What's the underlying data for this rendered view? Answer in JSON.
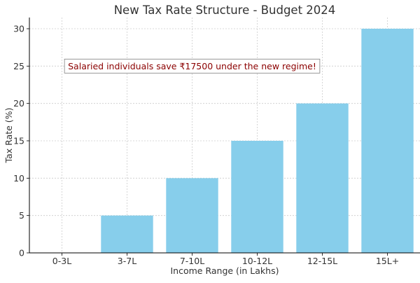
{
  "chart_data": {
    "type": "bar",
    "title": "New Tax Rate Structure - Budget 2024",
    "xlabel": "Income Range (in Lakhs)",
    "ylabel": "Tax Rate (%)",
    "categories": [
      "0-3L",
      "3-7L",
      "7-10L",
      "10-12L",
      "12-15L",
      "15L+"
    ],
    "values": [
      0,
      5,
      10,
      15,
      20,
      30
    ],
    "ylim": [
      0,
      31.5
    ],
    "yticks": [
      0,
      5,
      10,
      15,
      20,
      25,
      30
    ],
    "grid": true,
    "annotation": {
      "text": "Salaried individuals save ₹17500 under the new regime!",
      "x_category": "7-10L",
      "y": 25
    },
    "colors": {
      "bar": "#87ceeb",
      "grid": "#cccccc",
      "axis": "#000000",
      "text": "#333333",
      "annotation_text": "#8b0000",
      "annotation_border": "#808080"
    }
  }
}
